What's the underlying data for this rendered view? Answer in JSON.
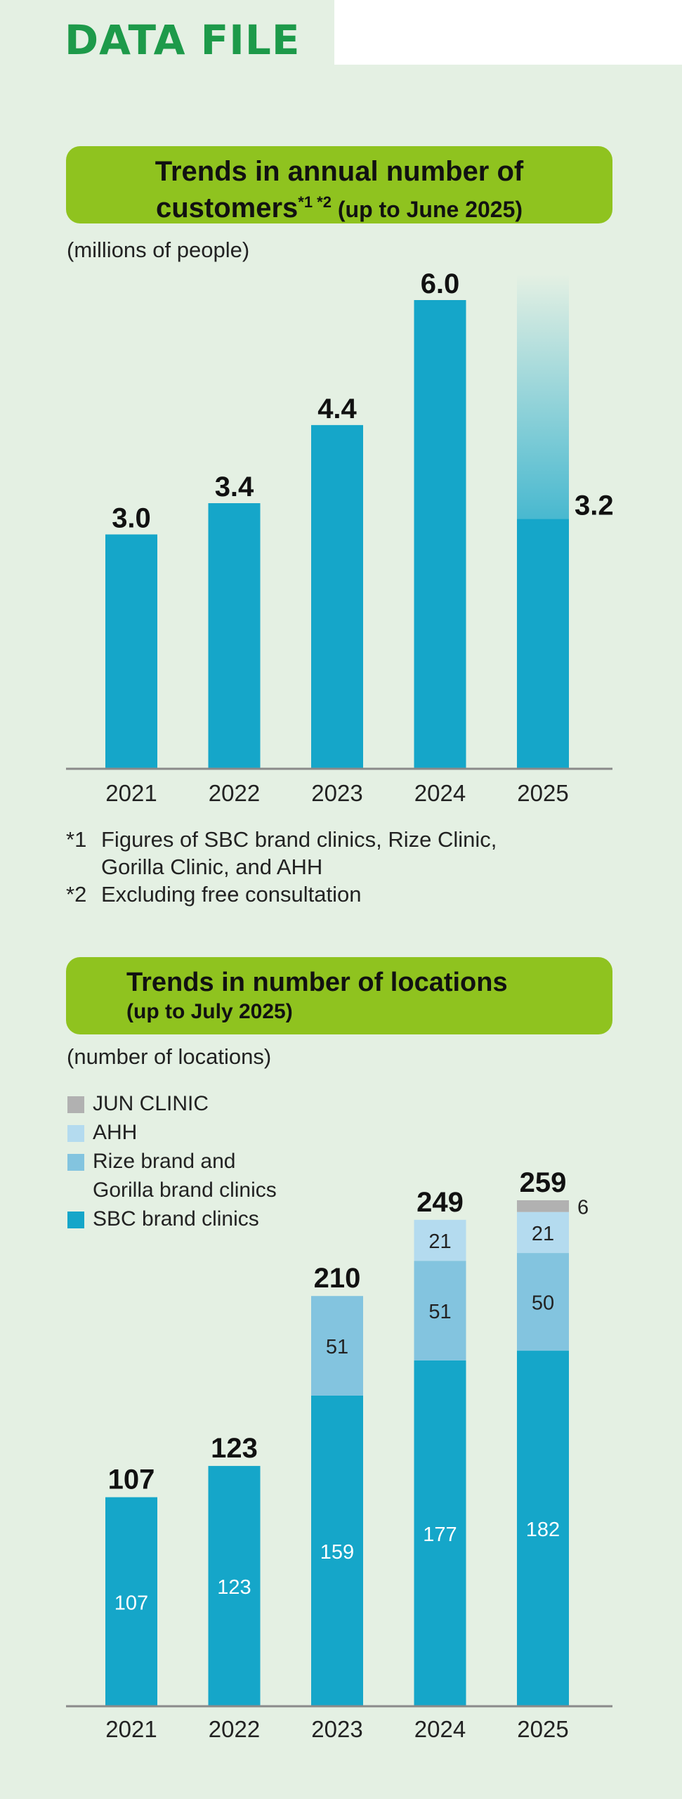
{
  "header": {
    "title": "DATA FILE"
  },
  "colors": {
    "panel": "#e4f0e3",
    "banner": "#8fc31f",
    "title": "#1d9a4a",
    "sbc": "#15a6c9",
    "rize": "#83c4df",
    "ahh": "#b4dbef",
    "jun": "#b1b1b1"
  },
  "chart1": {
    "banner_line1": "Trends in annual number of",
    "banner_line2_main": "customers",
    "banner_line2_sup": "*1 *2",
    "banner_line2_rest": " (up to June 2025)",
    "unit": "(millions of people)",
    "notes": [
      {
        "mark": "*1",
        "text": "Figures of SBC brand clinics, Rize Clinic,"
      },
      {
        "mark": "",
        "text": "Gorilla Clinic, and AHH"
      },
      {
        "mark": "*2",
        "text": "Excluding free consultation"
      }
    ]
  },
  "chart2": {
    "banner_line1": "Trends in number of locations",
    "banner_line2": "(up to July 2025)",
    "unit": "(number of locations)",
    "legend": [
      {
        "label": "JUN CLINIC",
        "color": "#b1b1b1"
      },
      {
        "label": "AHH",
        "color": "#b4dbef"
      },
      {
        "label": "Rize brand and",
        "label2": "Gorilla brand clinics",
        "color": "#83c4df"
      },
      {
        "label": "SBC brand clinics",
        "color": "#15a6c9"
      }
    ]
  },
  "chart_data": [
    {
      "type": "bar",
      "title": "Trends in annual number of customers*1 *2 (up to June 2025)",
      "ylabel": "(millions of people)",
      "categories": [
        "2021",
        "2022",
        "2023",
        "2024",
        "2025"
      ],
      "values": [
        3.0,
        3.4,
        4.4,
        6.0,
        3.2
      ],
      "value_labels": [
        "3.0",
        "3.4",
        "4.4",
        "6.0",
        "3.2"
      ],
      "ylim": [
        0,
        6.0
      ],
      "grid": false,
      "legend": "none",
      "partial_year": "2025"
    },
    {
      "type": "bar",
      "stacked": true,
      "title": "Trends in number of locations (up to July 2025)",
      "ylabel": "(number of locations)",
      "categories": [
        "2021",
        "2022",
        "2023",
        "2024",
        "2025"
      ],
      "totals": [
        107,
        123,
        210,
        249,
        259
      ],
      "ylim": [
        0,
        259
      ],
      "grid": false,
      "legend": "top-left",
      "series": [
        {
          "name": "SBC brand clinics",
          "color": "#15a6c9",
          "values": [
            107,
            123,
            159,
            177,
            182
          ]
        },
        {
          "name": "Rize brand and Gorilla brand clinics",
          "color": "#83c4df",
          "values": [
            0,
            0,
            51,
            51,
            50
          ]
        },
        {
          "name": "AHH",
          "color": "#b4dbef",
          "values": [
            0,
            0,
            0,
            21,
            21
          ]
        },
        {
          "name": "JUN CLINIC",
          "color": "#b1b1b1",
          "values": [
            0,
            0,
            0,
            0,
            6
          ]
        }
      ]
    }
  ]
}
